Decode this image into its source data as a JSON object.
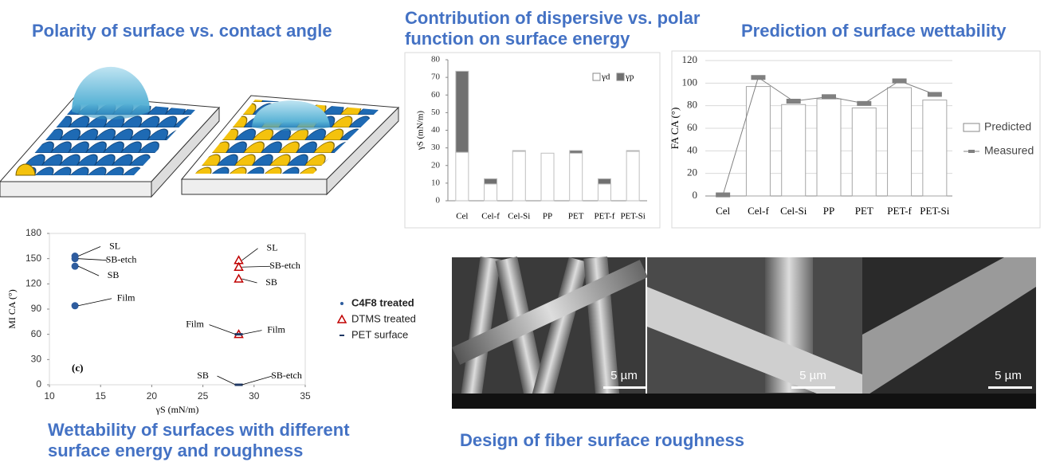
{
  "illustration": {
    "title": "Polarity of surface vs. contact angle"
  },
  "micrographs": {
    "title": "Design of fiber surface roughness",
    "scale_bars": [
      "5 µm",
      "5 µm",
      "5 µm"
    ]
  },
  "chart_data": [
    {
      "type": "bar",
      "stacked": true,
      "title": "Contribution of dispersive vs. polar function on surface energy",
      "ylabel": "γS (mN/m)",
      "categories": [
        "Cel",
        "Cel-f",
        "Cel-Si",
        "PP",
        "PET",
        "PET-f",
        "PET-Si"
      ],
      "series": [
        {
          "name": "γd",
          "color": "#ffffff",
          "values": [
            27.5,
            9.5,
            28,
            27,
            27,
            9.5,
            28
          ]
        },
        {
          "name": "γp",
          "color": "#707070",
          "values": [
            46,
            3,
            0.5,
            0,
            1.5,
            3,
            0.5
          ]
        }
      ],
      "ylim": [
        0,
        80
      ],
      "yticks": [
        0,
        10,
        20,
        30,
        40,
        50,
        60,
        70,
        80
      ],
      "legend": "upper right"
    },
    {
      "type": "bar-line",
      "title": "Prediction of surface wettability",
      "ylabel": "FA CA (°)",
      "categories": [
        "Cel",
        "Cel-f",
        "Cel-Si",
        "PP",
        "PET",
        "PET-f",
        "PET-Si"
      ],
      "series": [
        {
          "name": "Predicted",
          "type": "bar",
          "color": "#ffffff",
          "values": [
            0,
            97,
            81,
            86,
            78,
            96,
            85
          ]
        },
        {
          "name": "Measured",
          "type": "line",
          "color": "#808080",
          "values": [
            1,
            105,
            84,
            88,
            82,
            102,
            90
          ]
        }
      ],
      "ylim": [
        0,
        120
      ],
      "yticks": [
        0,
        20,
        40,
        60,
        80,
        100,
        120
      ],
      "grid": true,
      "legend": "right"
    },
    {
      "type": "scatter",
      "title": "Wettability of surfaces with different surface energy and roughness",
      "panel": "(c)",
      "xlabel": "γS (mN/m)",
      "ylabel": "MI CA (°)",
      "series": [
        {
          "name": "C4F8 treated",
          "color": "#2e5c9e",
          "marker": "circle",
          "x": [
            12.5,
            12.5,
            12.5,
            12.5
          ],
          "values": [
            153,
            150,
            141,
            94
          ],
          "labels": [
            "SL",
            "SB-etch",
            "SB",
            "Film"
          ]
        },
        {
          "name": "DTMS treated",
          "color": "#c00000",
          "marker": "triangle",
          "x": [
            28.5,
            28.5,
            28.5,
            28.5
          ],
          "values": [
            148,
            140,
            126,
            60
          ],
          "labels": [
            "SL",
            "SB-etch",
            "SB",
            "Film"
          ]
        },
        {
          "name": "PET surface",
          "color": "#1f3864",
          "marker": "dash",
          "x": [
            28.5,
            28.5,
            28.5
          ],
          "values": [
            60,
            0,
            0
          ],
          "labels": [
            "Film",
            "SB",
            "SB-etch"
          ]
        }
      ],
      "xlim": [
        10,
        35
      ],
      "xticks": [
        10,
        15,
        20,
        25,
        30,
        35
      ],
      "ylim": [
        0,
        180
      ],
      "yticks": [
        0,
        30,
        60,
        90,
        120,
        150,
        180
      ],
      "legend": "right"
    }
  ]
}
